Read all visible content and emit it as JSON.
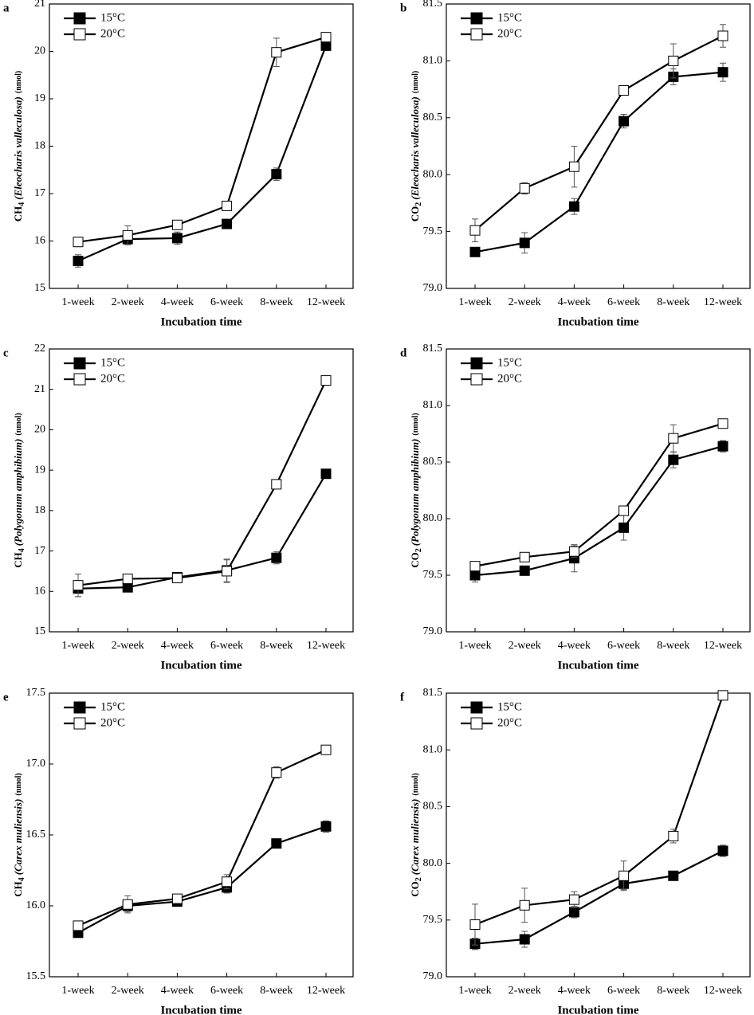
{
  "chart_data": [
    {
      "type": "line",
      "panel_label": "a",
      "ylabel": {
        "gas": "CH",
        "sub": "4",
        "species": "(Eleocharis valleculosa)",
        "unit": "(nmol)"
      },
      "xlabel": "Incubation time",
      "categories": [
        "1-week",
        "2-week",
        "4-week",
        "6-week",
        "8-week",
        "12-week"
      ],
      "ylim": [
        15,
        21
      ],
      "yticks": [
        15,
        16,
        17,
        18,
        19,
        20,
        21
      ],
      "series": [
        {
          "name": "15°C",
          "color": "#000000",
          "values": [
            15.58,
            16.04,
            16.06,
            16.36,
            17.41,
            20.12
          ],
          "errors": [
            0.13,
            0.1,
            0.13,
            0.05,
            0.13,
            0.1
          ]
        },
        {
          "name": "20°C",
          "color": "#ffffff",
          "values": [
            15.98,
            16.12,
            16.34,
            16.74,
            19.98,
            20.3
          ],
          "errors": [
            0.1,
            0.2,
            0.08,
            0.05,
            0.3,
            0.1
          ]
        }
      ]
    },
    {
      "type": "line",
      "panel_label": "b",
      "ylabel": {
        "gas": "CO",
        "sub": "2",
        "species": "(Eleocharis valleculosa)",
        "unit": "(nmol)"
      },
      "xlabel": "Incubation time",
      "categories": [
        "1-week",
        "2-week",
        "4-week",
        "6-week",
        "8-week",
        "12-week"
      ],
      "ylim": [
        79,
        81.5
      ],
      "yticks": [
        {
          "value": 79,
          "label": "79.0"
        },
        79.5,
        {
          "value": 80,
          "label": "80.0"
        },
        80.5,
        {
          "value": 81,
          "label": "81.0"
        },
        81.5
      ],
      "series": [
        {
          "name": "15°C",
          "color": "#000000",
          "values": [
            79.32,
            79.4,
            79.72,
            80.47,
            80.86,
            80.9
          ],
          "errors": [
            0.02,
            0.09,
            0.07,
            0.06,
            0.07,
            0.08
          ]
        },
        {
          "name": "20°C",
          "color": "#ffffff",
          "values": [
            79.51,
            79.88,
            80.07,
            80.74,
            81.0,
            81.22
          ],
          "errors": [
            0.1,
            0.05,
            0.18,
            0.02,
            0.15,
            0.1
          ]
        }
      ]
    },
    {
      "type": "line",
      "panel_label": "c",
      "ylabel": {
        "gas": "CH",
        "sub": "4",
        "species": "(Polygonum amphibium)",
        "unit": "(nmol)"
      },
      "xlabel": "Incubation time",
      "categories": [
        "1-week",
        "2-week",
        "4-week",
        "6-week",
        "8-week",
        "12-week"
      ],
      "ylim": [
        15,
        22
      ],
      "yticks": [
        15,
        16,
        17,
        18,
        19,
        20,
        21,
        22
      ],
      "series": [
        {
          "name": "15°C",
          "color": "#000000",
          "values": [
            16.07,
            16.1,
            16.35,
            16.52,
            16.83,
            18.91
          ],
          "errors": [
            0.2,
            0.1,
            0.08,
            0.28,
            0.15,
            0.05
          ]
        },
        {
          "name": "20°C",
          "color": "#ffffff",
          "values": [
            16.15,
            16.31,
            16.33,
            16.5,
            18.65,
            21.22
          ],
          "errors": [
            0.28,
            0.08,
            0.08,
            0.28,
            0.1,
            0.1
          ]
        }
      ]
    },
    {
      "type": "line",
      "panel_label": "d",
      "ylabel": {
        "gas": "CO",
        "sub": "2",
        "species": "(Polygonum amphibium)",
        "unit": "(nmol)"
      },
      "xlabel": "Incubation time",
      "categories": [
        "1-week",
        "2-week",
        "4-week",
        "6-week",
        "8-week",
        "12-week"
      ],
      "ylim": [
        79,
        81.5
      ],
      "yticks": [
        {
          "value": 79,
          "label": "79.0"
        },
        79.5,
        {
          "value": 80,
          "label": "80.0"
        },
        80.5,
        {
          "value": 81,
          "label": "81.0"
        },
        81.5
      ],
      "series": [
        {
          "name": "15°C",
          "color": "#000000",
          "values": [
            79.5,
            79.54,
            79.65,
            79.92,
            80.52,
            80.64
          ],
          "errors": [
            0.06,
            0.04,
            0.12,
            0.11,
            0.07,
            0.05
          ]
        },
        {
          "name": "20°C",
          "color": "#ffffff",
          "values": [
            79.58,
            79.66,
            79.71,
            80.07,
            80.71,
            80.84
          ],
          "errors": [
            0.04,
            0.02,
            0.05,
            0.04,
            0.12,
            0.03
          ]
        }
      ]
    },
    {
      "type": "line",
      "panel_label": "e",
      "ylabel": {
        "gas": "CH",
        "sub": "4",
        "species": "(Carex muliensis)",
        "unit": "(nmol)"
      },
      "xlabel": "Incubation time",
      "categories": [
        "1-week",
        "2-week",
        "4-week",
        "6-week",
        "8-week",
        "12-week"
      ],
      "ylim": [
        15.5,
        17.5
      ],
      "yticks": [
        15.5,
        {
          "value": 16,
          "label": "16.0"
        },
        16.5,
        {
          "value": 17,
          "label": "17.0"
        },
        17.5
      ],
      "series": [
        {
          "name": "15°C",
          "color": "#000000",
          "values": [
            15.81,
            16.0,
            16.03,
            16.13,
            16.44,
            16.56
          ],
          "errors": [
            0.02,
            0.04,
            0.02,
            0.04,
            0.03,
            0.04
          ]
        },
        {
          "name": "20°C",
          "color": "#ffffff",
          "values": [
            15.86,
            16.01,
            16.05,
            16.17,
            16.94,
            17.1
          ],
          "errors": [
            0.02,
            0.06,
            0.02,
            0.05,
            0.04,
            0.02
          ]
        }
      ]
    },
    {
      "type": "line",
      "panel_label": "f",
      "ylabel": {
        "gas": "CO",
        "sub": "2",
        "species": "(Carex muliensis)",
        "unit": "(nmol)"
      },
      "xlabel": "Incubation time",
      "categories": [
        "1-week",
        "2-week",
        "4-week",
        "6-week",
        "8-week",
        "12-week"
      ],
      "ylim": [
        79,
        81.5
      ],
      "yticks": [
        {
          "value": 79,
          "label": "79.0"
        },
        79.5,
        {
          "value": 80,
          "label": "80.0"
        },
        80.5,
        {
          "value": 81,
          "label": "81.0"
        },
        81.5
      ],
      "series": [
        {
          "name": "15°C",
          "color": "#000000",
          "values": [
            79.29,
            79.33,
            79.57,
            79.82,
            79.89,
            80.11
          ],
          "errors": [
            0.05,
            0.07,
            0.05,
            0.05,
            0.02,
            0.05
          ]
        },
        {
          "name": "20°C",
          "color": "#ffffff",
          "values": [
            79.46,
            79.63,
            79.68,
            79.89,
            80.24,
            81.48
          ],
          "errors": [
            0.18,
            0.15,
            0.07,
            0.13,
            0.06,
            0.02
          ]
        }
      ]
    }
  ]
}
